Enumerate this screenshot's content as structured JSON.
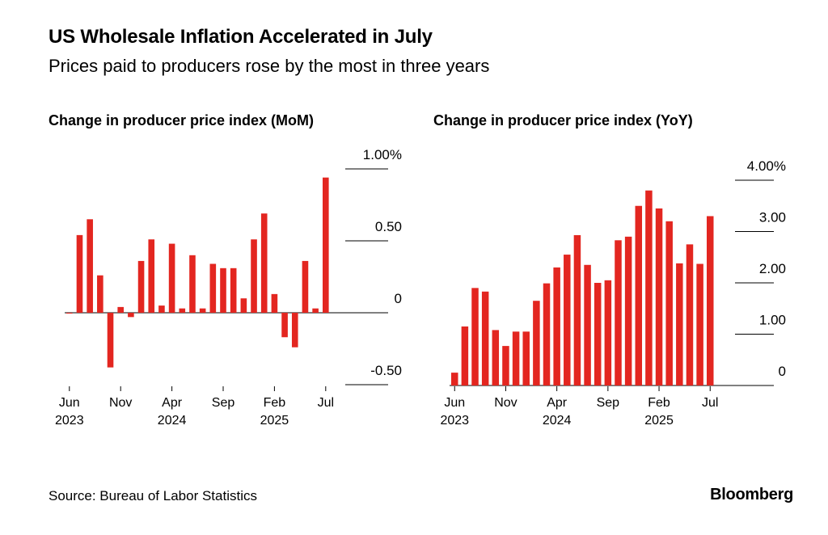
{
  "header": {
    "title": "US Wholesale Inflation Accelerated in July",
    "subtitle": "Prices paid to producers rose by the most in three years"
  },
  "footer": {
    "source": "Source: Bureau of Labor Statistics",
    "brand": "Bloomberg"
  },
  "colors": {
    "bar": "#e32620",
    "axis": "#000000",
    "grid": "#000000"
  },
  "chart_data": [
    {
      "type": "bar",
      "title": "Change in producer price index (MoM)",
      "y_unit": "%",
      "ylim": [
        -0.5,
        1.0
      ],
      "yticks": [
        -0.5,
        0,
        0.5,
        1.0
      ],
      "ytick_labels": [
        "-0.50",
        "0",
        "0.50",
        "1.00%"
      ],
      "y_axis_side": "right",
      "x": [
        "2023-06",
        "2023-07",
        "2023-08",
        "2023-09",
        "2023-10",
        "2023-11",
        "2023-12",
        "2024-01",
        "2024-02",
        "2024-03",
        "2024-04",
        "2024-05",
        "2024-06",
        "2024-07",
        "2024-08",
        "2024-09",
        "2024-10",
        "2024-11",
        "2024-12",
        "2025-01",
        "2025-02",
        "2025-03",
        "2025-04",
        "2025-05",
        "2025-06",
        "2025-07"
      ],
      "values": [
        0.0,
        0.54,
        0.65,
        0.26,
        -0.38,
        0.04,
        -0.03,
        0.36,
        0.51,
        0.05,
        0.48,
        0.03,
        0.4,
        0.03,
        0.34,
        0.31,
        0.31,
        0.1,
        0.51,
        0.69,
        0.13,
        -0.17,
        -0.24,
        0.36,
        0.03,
        0.94
      ],
      "xtick_labels": [
        {
          "x": "2023-06",
          "lines": [
            "Jun",
            "2023"
          ]
        },
        {
          "x": "2023-11",
          "lines": [
            "Nov"
          ]
        },
        {
          "x": "2024-04",
          "lines": [
            "Apr",
            "2024"
          ]
        },
        {
          "x": "2024-09",
          "lines": [
            "Sep"
          ]
        },
        {
          "x": "2025-02",
          "lines": [
            "Feb",
            "2025"
          ]
        },
        {
          "x": "2025-07",
          "lines": [
            "Jul"
          ]
        }
      ]
    },
    {
      "type": "bar",
      "title": "Change in producer price index (YoY)",
      "y_unit": "%",
      "ylim": [
        0,
        4.0
      ],
      "yticks": [
        0,
        1.0,
        2.0,
        3.0,
        4.0
      ],
      "ytick_labels": [
        "0",
        "1.00",
        "2.00",
        "3.00",
        "4.00%"
      ],
      "y_axis_side": "right",
      "x": [
        "2023-06",
        "2023-07",
        "2023-08",
        "2023-09",
        "2023-10",
        "2023-11",
        "2023-12",
        "2024-01",
        "2024-02",
        "2024-03",
        "2024-04",
        "2024-05",
        "2024-06",
        "2024-07",
        "2024-08",
        "2024-09",
        "2024-10",
        "2024-11",
        "2024-12",
        "2025-01",
        "2025-02",
        "2025-03",
        "2025-04",
        "2025-05",
        "2025-06",
        "2025-07"
      ],
      "values": [
        0.25,
        1.15,
        1.9,
        1.83,
        1.08,
        0.77,
        1.05,
        1.05,
        1.65,
        1.99,
        2.3,
        2.55,
        2.93,
        2.35,
        2.0,
        2.05,
        2.83,
        2.9,
        3.5,
        3.8,
        3.45,
        3.2,
        2.38,
        2.75,
        2.37,
        3.3
      ],
      "xtick_labels": [
        {
          "x": "2023-06",
          "lines": [
            "Jun",
            "2023"
          ]
        },
        {
          "x": "2023-11",
          "lines": [
            "Nov"
          ]
        },
        {
          "x": "2024-04",
          "lines": [
            "Apr",
            "2024"
          ]
        },
        {
          "x": "2024-09",
          "lines": [
            "Sep"
          ]
        },
        {
          "x": "2025-02",
          "lines": [
            "Feb",
            "2025"
          ]
        },
        {
          "x": "2025-07",
          "lines": [
            "Jul"
          ]
        }
      ]
    }
  ]
}
